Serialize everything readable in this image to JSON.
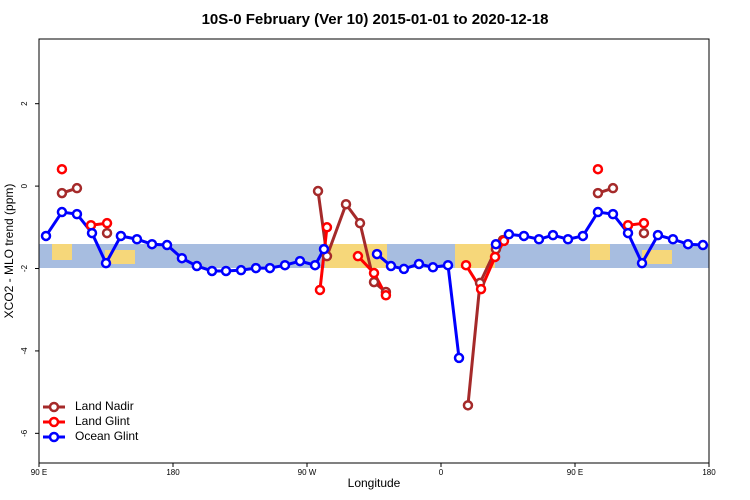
{
  "chart_data": {
    "type": "line",
    "title": "10S-0 February (Ver 10)   2015-01-01 to 2020-12-18",
    "x_label": "Longitude",
    "y_label": "XCO2 - MLO trend (ppm)",
    "xlim": [
      90,
      540
    ],
    "ylim": [
      -6.72,
      3.57
    ],
    "xticks": [
      {
        "value": 90,
        "label": "90 E"
      },
      180,
      {
        "value": 270,
        "label": "90 W"
      },
      {
        "value": 360,
        "label": "0"
      },
      {
        "value": 450,
        "label": "90 E"
      },
      {
        "value": 540,
        "label": "180"
      }
    ],
    "yticks": [
      2,
      0,
      -2,
      -4,
      -6
    ],
    "legend": "bottom-left",
    "series": [
      {
        "name": "Land Nadir",
        "color": "#a52a2a",
        "x": [
          105.4,
          115.5,
          null,
          135.7,
          null,
          277.4,
          283.4,
          296.2,
          305.6,
          315,
          323,
          null,
          378.1,
          386.2,
          396.9,
          401.6,
          null,
          465.4,
          475.5,
          null,
          496.3
        ],
        "values": [
          -0.17,
          -0.05,
          null,
          -1.14,
          null,
          -0.12,
          -1.7,
          -0.44,
          -0.9,
          -2.33,
          -2.57,
          null,
          -5.32,
          -2.35,
          -1.53,
          -1.31,
          null,
          -0.17,
          -0.05,
          null,
          -1.14
        ]
      },
      {
        "name": "Land Glint",
        "color": "#ff0000",
        "x": [
          105.4,
          null,
          124.9,
          135.7,
          null,
          278.7,
          283.4,
          null,
          304.2,
          315,
          323,
          null,
          376.8,
          386.9,
          396.3,
          402.3,
          null,
          465.4,
          null,
          485.6,
          496.3
        ],
        "values": [
          0.41,
          null,
          -0.95,
          -0.9,
          null,
          -2.52,
          -1.0,
          null,
          -1.7,
          -2.11,
          -2.65,
          null,
          -1.92,
          -2.5,
          -1.72,
          -1.33,
          null,
          0.41,
          null,
          -0.95,
          -0.9
        ]
      },
      {
        "name": "Ocean Glint",
        "color": "#0000ff",
        "x": [
          94.7,
          105.4,
          115.5,
          125.6,
          135,
          145,
          155.8,
          165.9,
          176,
          186,
          196,
          206.2,
          215.6,
          225.7,
          235.7,
          245.1,
          255.2,
          265.3,
          275.4,
          281.4,
          null,
          317,
          326.4,
          335.1,
          345.2,
          354.6,
          364.7,
          372.1,
          null,
          396.9,
          405.6,
          415.7,
          425.8,
          435.2,
          445.3,
          455.3,
          465.4,
          475.5,
          485.6,
          495,
          505.7,
          515.8,
          525.9,
          535.9
        ],
        "values": [
          -1.21,
          -0.63,
          -0.68,
          -1.14,
          -1.87,
          -1.21,
          -1.29,
          -1.41,
          -1.43,
          -1.75,
          -1.94,
          -2.06,
          -2.06,
          -2.04,
          -1.99,
          -1.99,
          -1.92,
          -1.82,
          -1.92,
          -1.53,
          null,
          -1.65,
          -1.94,
          -2.01,
          -1.89,
          -1.97,
          -1.92,
          -4.17,
          null,
          -1.41,
          -1.17,
          -1.21,
          -1.29,
          -1.19,
          -1.29,
          -1.21,
          -0.63,
          -0.68,
          -1.14,
          -1.87,
          -1.19,
          -1.29,
          -1.41,
          -1.43
        ]
      }
    ]
  }
}
